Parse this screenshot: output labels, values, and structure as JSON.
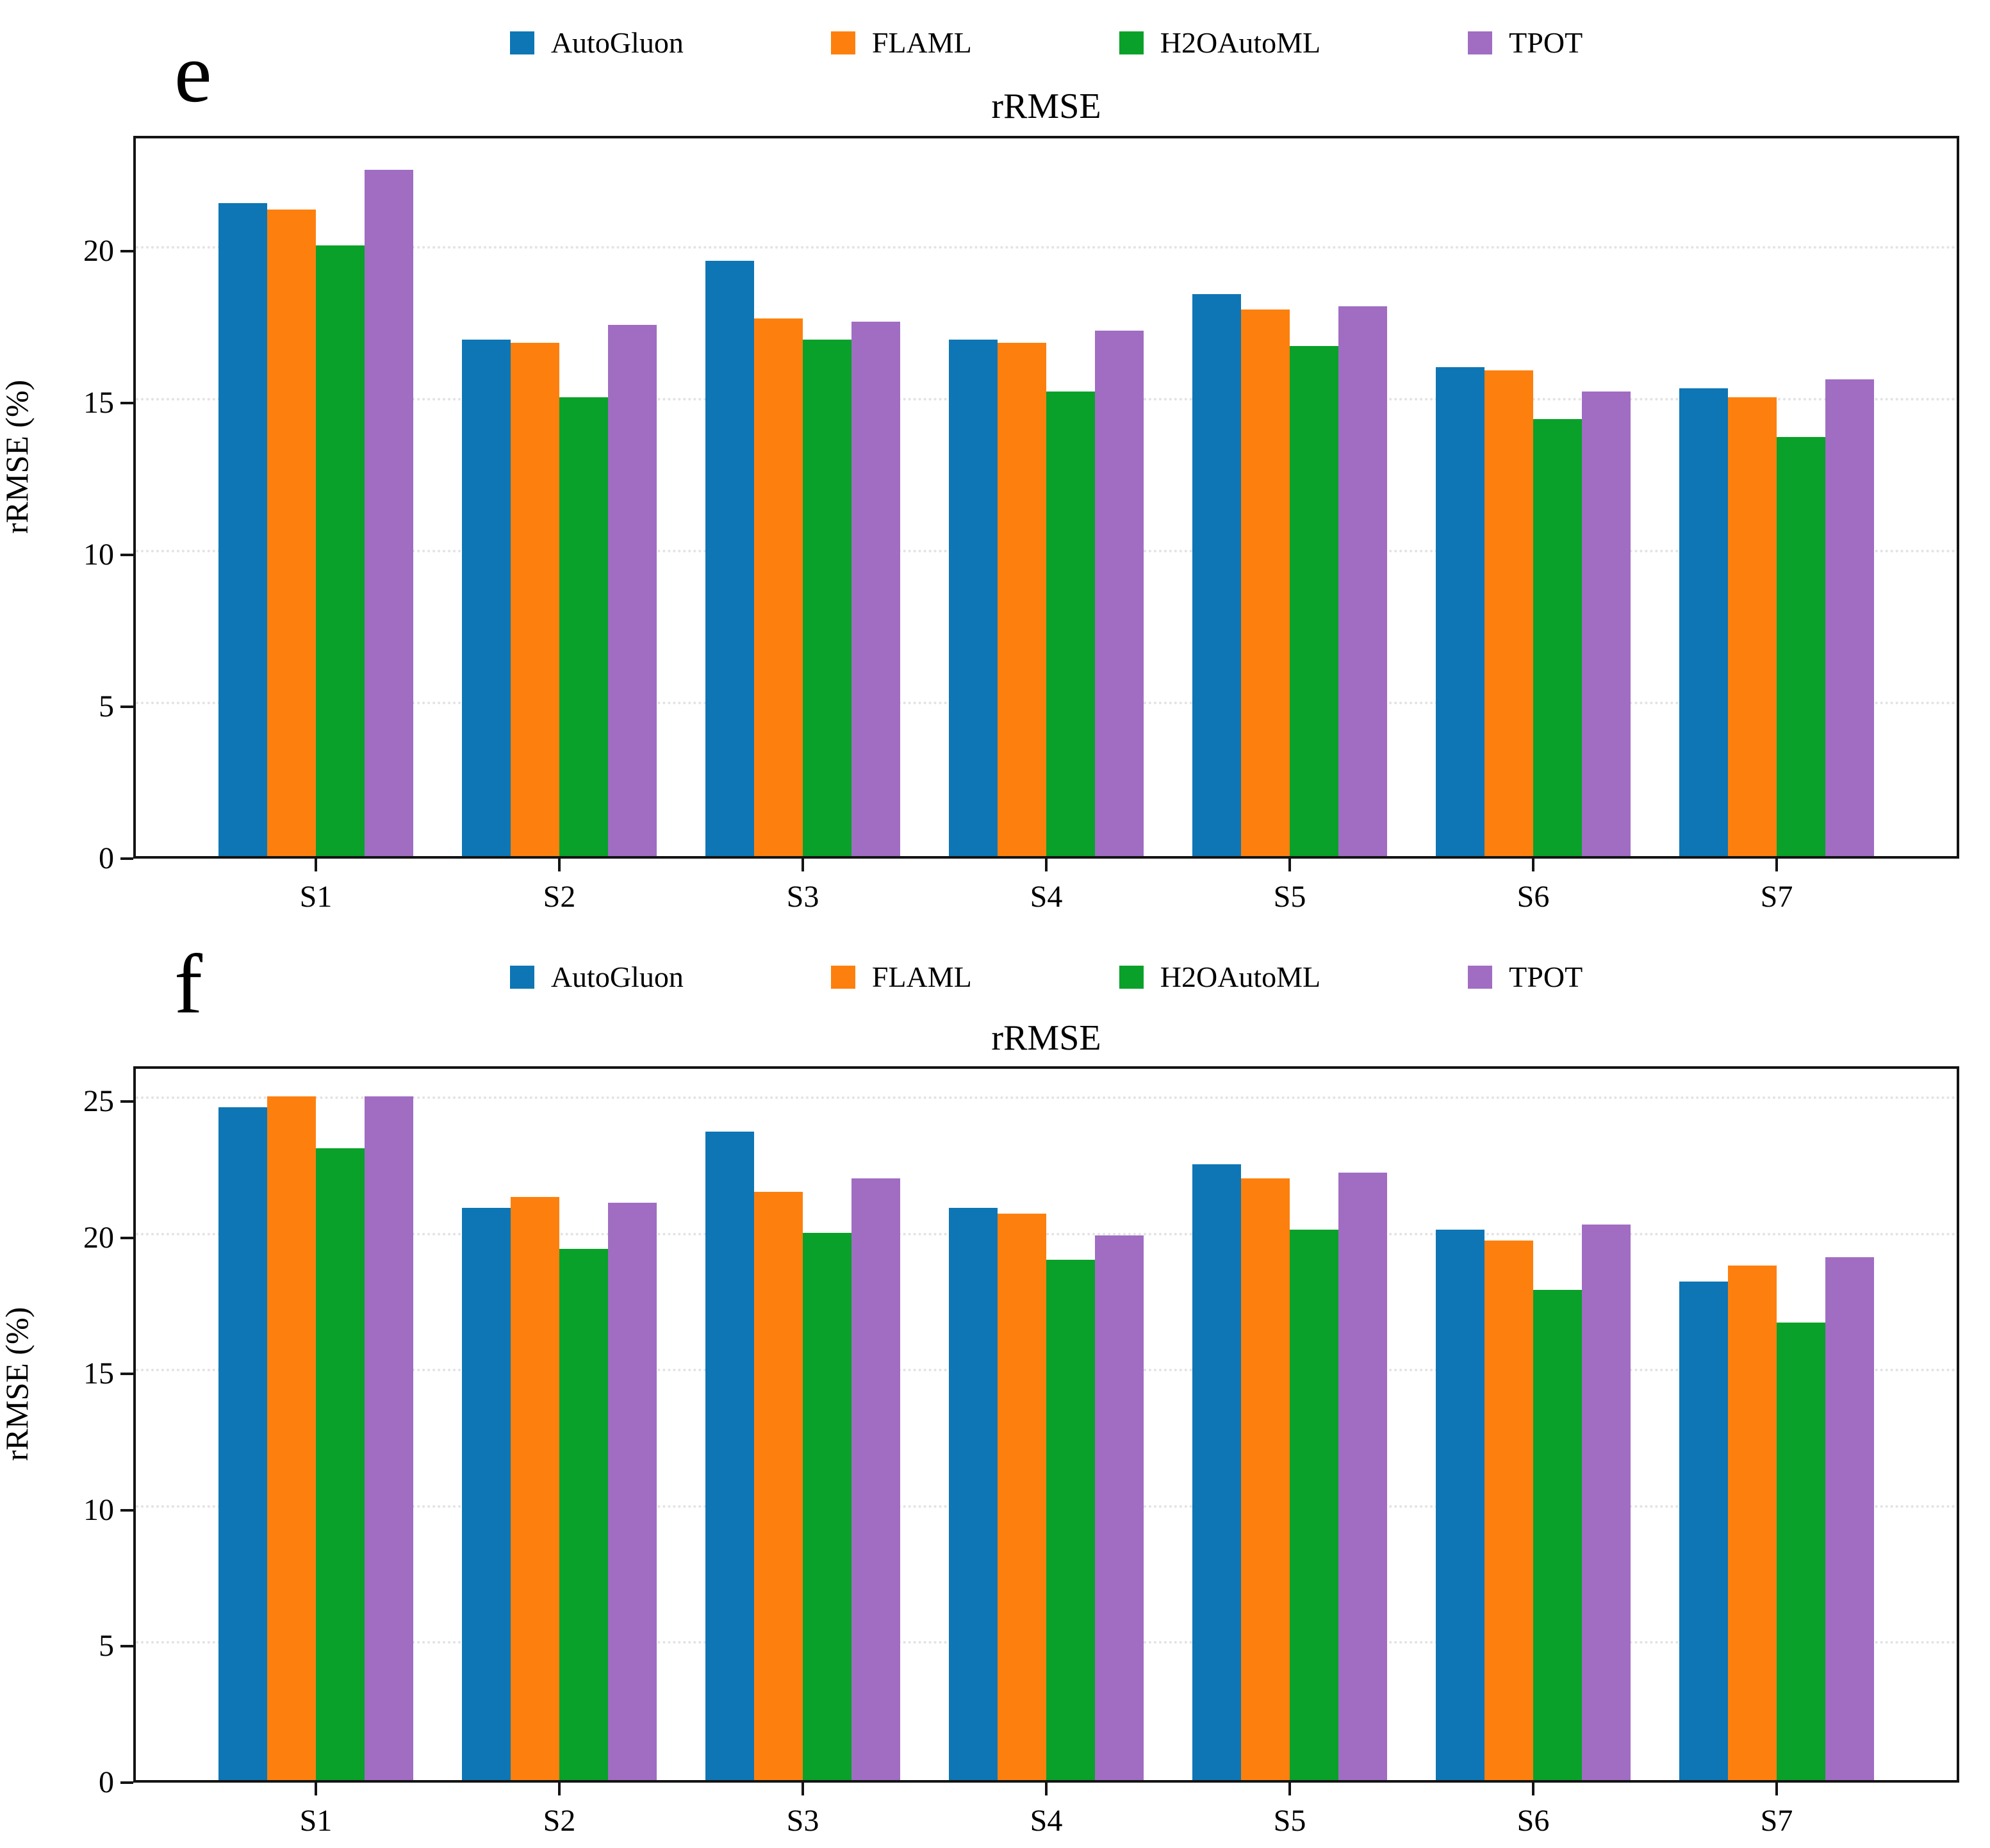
{
  "chart_data": [
    {
      "type": "bar",
      "panel_label": "e",
      "title": "rRMSE",
      "ylabel": "rRMSE (%)",
      "categories": [
        "S1",
        "S2",
        "S3",
        "S4",
        "S5",
        "S6",
        "S7"
      ],
      "series": [
        {
          "name": "AutoGluon",
          "color": "#0e76b4",
          "values": [
            21.5,
            17.0,
            19.6,
            17.0,
            18.5,
            16.1,
            15.4
          ]
        },
        {
          "name": "FLAML",
          "color": "#fd800e",
          "values": [
            21.3,
            16.9,
            17.7,
            16.9,
            18.0,
            16.0,
            15.1
          ]
        },
        {
          "name": "H2OAutoML",
          "color": "#09a129",
          "values": [
            20.1,
            15.1,
            17.0,
            15.3,
            16.8,
            14.4,
            13.8
          ]
        },
        {
          "name": "TPOT",
          "color": "#a06dc3",
          "values": [
            22.6,
            17.5,
            17.6,
            17.3,
            18.1,
            15.3,
            15.7
          ]
        }
      ],
      "yticks": [
        0,
        5,
        10,
        15,
        20
      ],
      "ylim": [
        0,
        23.8
      ],
      "grid": "horizontal dotted",
      "legend_position": "top center"
    },
    {
      "type": "bar",
      "panel_label": "f",
      "title": "rRMSE",
      "ylabel": "rRMSE (%)",
      "categories": [
        "S1",
        "S2",
        "S3",
        "S4",
        "S5",
        "S6",
        "S7"
      ],
      "series": [
        {
          "name": "AutoGluon",
          "color": "#0e76b4",
          "values": [
            24.7,
            21.0,
            23.8,
            21.0,
            22.6,
            20.2,
            18.3
          ]
        },
        {
          "name": "FLAML",
          "color": "#fd800e",
          "values": [
            25.1,
            21.4,
            21.6,
            20.8,
            22.1,
            19.8,
            18.9
          ]
        },
        {
          "name": "H2OAutoML",
          "color": "#09a129",
          "values": [
            23.2,
            19.5,
            20.1,
            19.1,
            20.2,
            18.0,
            16.8
          ]
        },
        {
          "name": "TPOT",
          "color": "#a06dc3",
          "values": [
            25.1,
            21.2,
            22.1,
            20.0,
            22.3,
            20.4,
            19.2
          ]
        }
      ],
      "yticks": [
        0,
        5,
        10,
        15,
        20,
        25
      ],
      "ylim": [
        0,
        26.3
      ],
      "grid": "horizontal dotted",
      "legend_position": "top center"
    }
  ]
}
